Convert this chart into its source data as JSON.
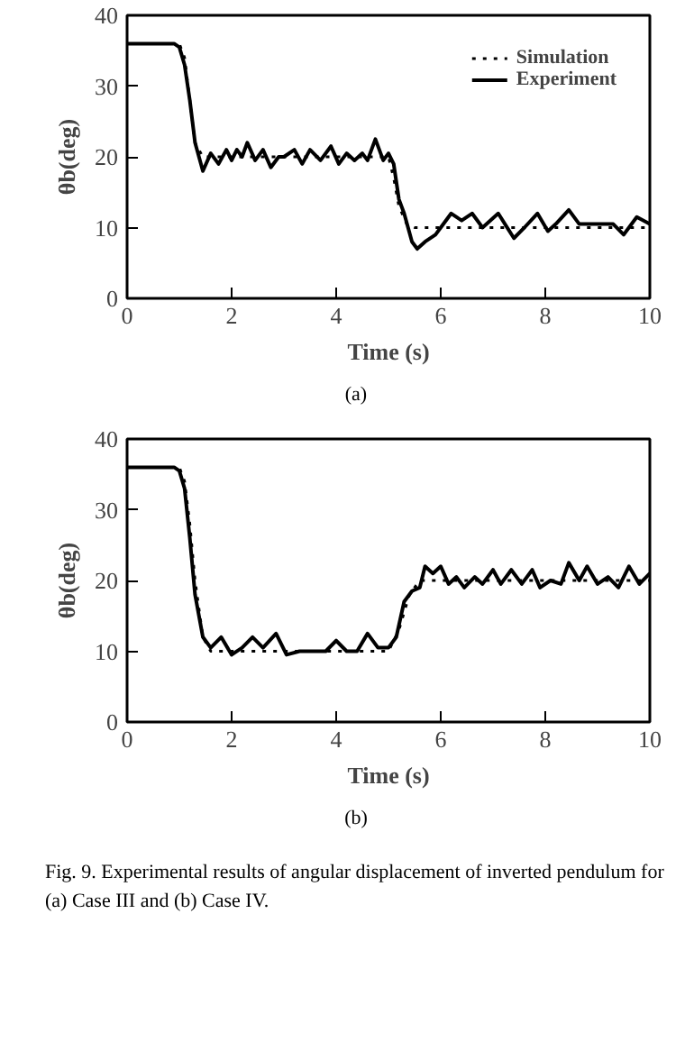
{
  "chart_data": [
    {
      "type": "line",
      "xlabel": "Time (s)",
      "ylabel": "θb(deg)",
      "xlim": [
        0,
        10
      ],
      "ylim": [
        0,
        40
      ],
      "xticks": [
        0,
        2,
        4,
        6,
        8,
        10
      ],
      "yticks": [
        0,
        10,
        20,
        30,
        40
      ],
      "grid": false,
      "legend": "top right",
      "annotations": [
        "(a)"
      ],
      "series": [
        {
          "name": "Simulation",
          "color": "#000000",
          "line_style": "dotted",
          "x": [
            0,
            1.0,
            1.1,
            1.2,
            1.3,
            1.45,
            5.0,
            5.1,
            5.2,
            5.35,
            5.5,
            10
          ],
          "values": [
            36,
            36,
            34,
            28,
            22,
            20,
            20,
            17,
            13,
            10.5,
            10,
            10
          ]
        },
        {
          "name": "Experiment",
          "color": "#000000",
          "line_style": "solid",
          "x": [
            0,
            0.9,
            1.0,
            1.1,
            1.2,
            1.3,
            1.45,
            1.6,
            1.75,
            1.9,
            2.0,
            2.1,
            2.2,
            2.3,
            2.45,
            2.6,
            2.75,
            2.9,
            3.0,
            3.2,
            3.35,
            3.5,
            3.7,
            3.9,
            4.05,
            4.2,
            4.35,
            4.5,
            4.6,
            4.75,
            4.9,
            5.0,
            5.1,
            5.2,
            5.3,
            5.45,
            5.55,
            5.7,
            5.9,
            6.0,
            6.2,
            6.4,
            6.6,
            6.8,
            7.1,
            7.4,
            7.6,
            7.85,
            8.05,
            8.2,
            8.45,
            8.65,
            9.0,
            9.3,
            9.5,
            9.75,
            10
          ],
          "values": [
            36,
            36,
            35.5,
            33,
            28,
            22,
            18,
            20.5,
            19,
            21,
            19.5,
            21,
            20,
            22,
            19.5,
            21,
            18.5,
            20,
            20,
            21,
            19,
            21,
            19.5,
            21.5,
            19,
            20.5,
            19.5,
            20.5,
            19.5,
            22.5,
            19.5,
            20.5,
            19,
            14,
            12,
            8,
            7,
            8,
            9,
            10,
            12,
            11,
            12,
            10,
            12,
            8.5,
            10,
            12,
            9.5,
            10.5,
            12.5,
            10.5,
            10.5,
            10.5,
            9,
            11.5,
            10.5
          ]
        }
      ]
    },
    {
      "type": "line",
      "xlabel": "Time (s)",
      "ylabel": "θb(deg)",
      "xlim": [
        0,
        10
      ],
      "ylim": [
        0,
        40
      ],
      "xticks": [
        0,
        2,
        4,
        6,
        8,
        10
      ],
      "yticks": [
        0,
        10,
        20,
        30,
        40
      ],
      "grid": false,
      "annotations": [
        "(b)",
        "Fig. 9.   Experimental results of angular displacement of inverted pendulum for (a) Case III and (b) Case IV."
      ],
      "series": [
        {
          "color": "#000000",
          "line_style": "dotted",
          "x": [
            0,
            1.0,
            1.1,
            1.2,
            1.3,
            1.45,
            1.6,
            5.0,
            5.2,
            5.4,
            5.6,
            10
          ],
          "values": [
            36,
            36,
            34,
            28,
            20,
            12,
            10,
            10,
            13,
            18,
            20,
            20
          ]
        },
        {
          "color": "#000000",
          "line_style": "solid",
          "x": [
            0,
            0.9,
            1.0,
            1.1,
            1.2,
            1.3,
            1.45,
            1.6,
            1.8,
            2.0,
            2.2,
            2.4,
            2.6,
            2.85,
            3.05,
            3.3,
            3.5,
            3.8,
            4.0,
            4.2,
            4.4,
            4.6,
            4.8,
            5.0,
            5.15,
            5.3,
            5.45,
            5.6,
            5.7,
            5.85,
            6.0,
            6.15,
            6.3,
            6.45,
            6.65,
            6.8,
            7.0,
            7.15,
            7.35,
            7.55,
            7.75,
            7.9,
            8.1,
            8.3,
            8.45,
            8.65,
            8.8,
            9.0,
            9.2,
            9.4,
            9.6,
            9.8,
            10
          ],
          "values": [
            36,
            36,
            35.5,
            33,
            26,
            18,
            12,
            10.5,
            12,
            9.5,
            10.5,
            12,
            10.5,
            12.5,
            9.5,
            10,
            10,
            10,
            11.5,
            10,
            10,
            12.5,
            10.5,
            10.5,
            12,
            17,
            18.5,
            19,
            22,
            21,
            22,
            19.5,
            20.5,
            19,
            20.5,
            19.5,
            21.5,
            19.5,
            21.5,
            19.5,
            21.5,
            19,
            20,
            19.5,
            22.5,
            20,
            22,
            19.5,
            20.5,
            19,
            22,
            19.5,
            21
          ]
        }
      ]
    }
  ]
}
